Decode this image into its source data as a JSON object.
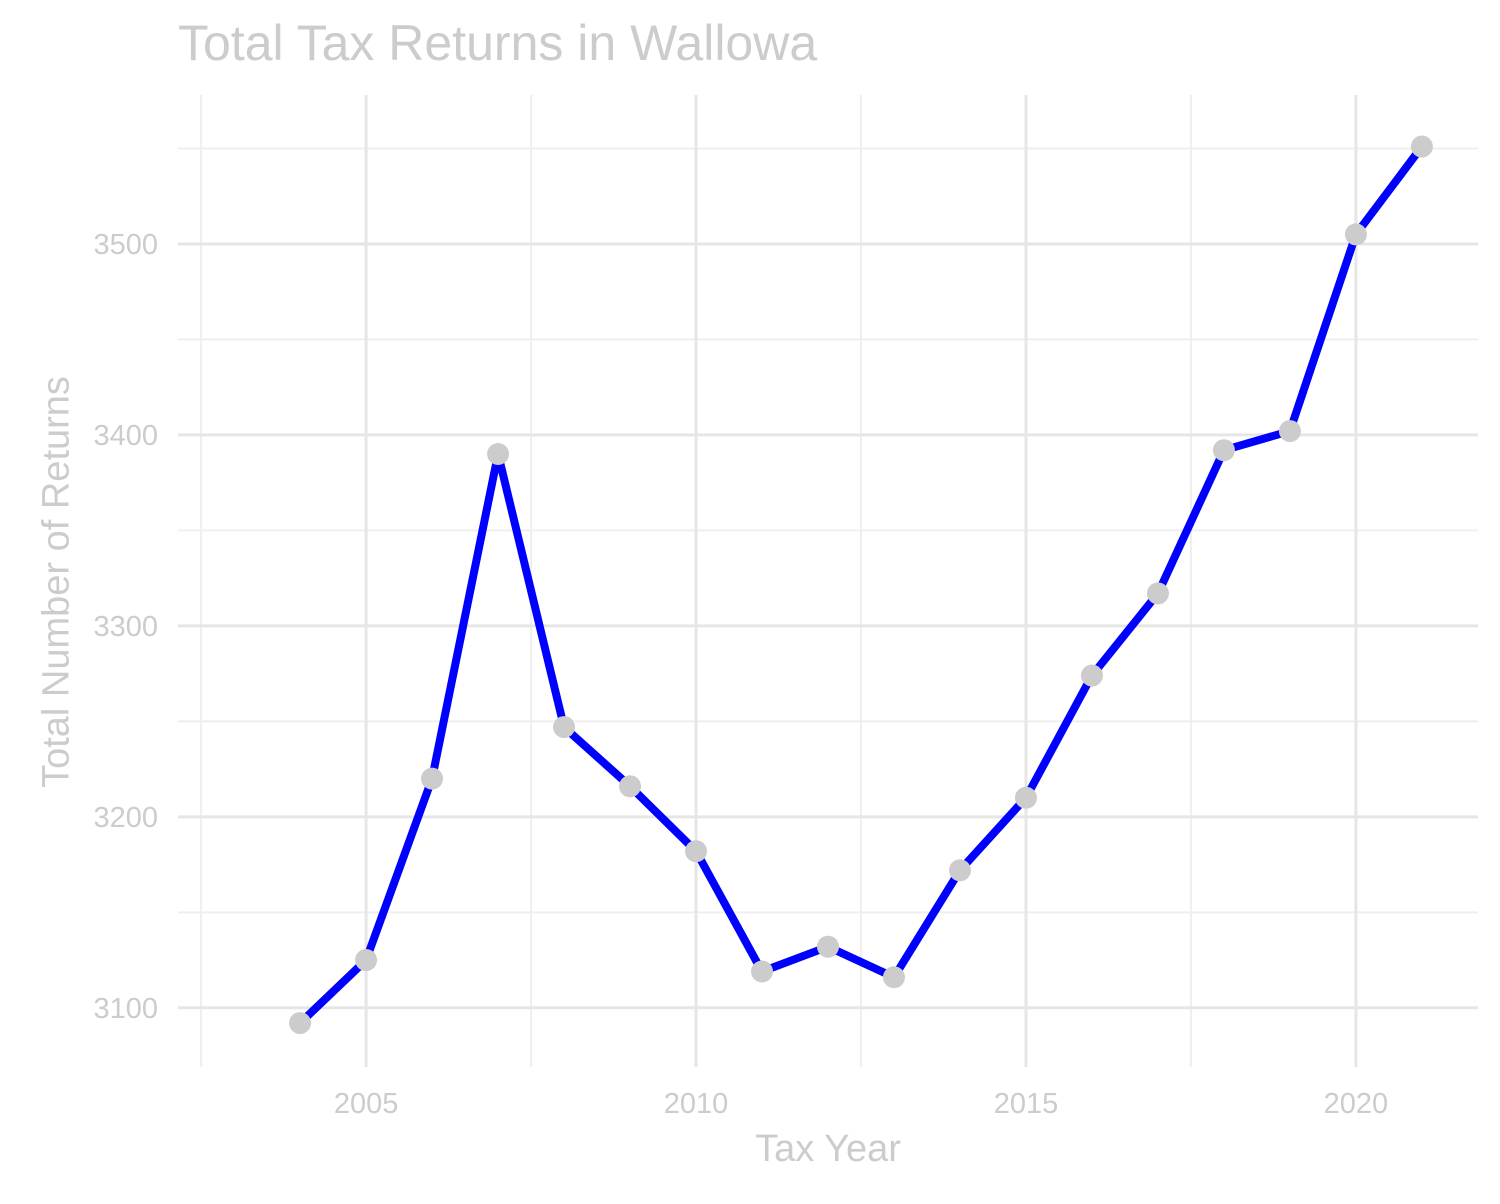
{
  "chart_data": {
    "type": "line",
    "title": "Total Tax Returns in Wallowa",
    "xlabel": "Tax Year",
    "ylabel": "Total Number of Returns",
    "x": [
      2004,
      2005,
      2006,
      2007,
      2008,
      2009,
      2010,
      2011,
      2012,
      2013,
      2014,
      2015,
      2016,
      2017,
      2018,
      2019,
      2020,
      2021
    ],
    "series": [
      {
        "values": [
          3092,
          3125,
          3220,
          3390,
          3247,
          3216,
          3182,
          3119,
          3132,
          3116,
          3172,
          3210,
          3274,
          3317,
          3392,
          3402,
          3505,
          3551
        ]
      }
    ],
    "xlim": [
      2002.15,
      2021.85
    ],
    "ylim": [
      3069,
      3578
    ],
    "x_ticks": [
      2005,
      2010,
      2015,
      2020
    ],
    "x_tick_labels": [
      "2005",
      "2010",
      "2015",
      "2020"
    ],
    "y_ticks": [
      3100,
      3200,
      3300,
      3400,
      3500
    ],
    "y_tick_labels": [
      "3100",
      "3200",
      "3300",
      "3400",
      "3500"
    ],
    "grid": true,
    "legend": "none",
    "colors": {
      "line": "#0000ff",
      "point": "#cccccc",
      "grid_major": "#e6e6e6",
      "grid_minor": "#efefef",
      "text": "#cccccc",
      "background": "#ffffff"
    }
  }
}
